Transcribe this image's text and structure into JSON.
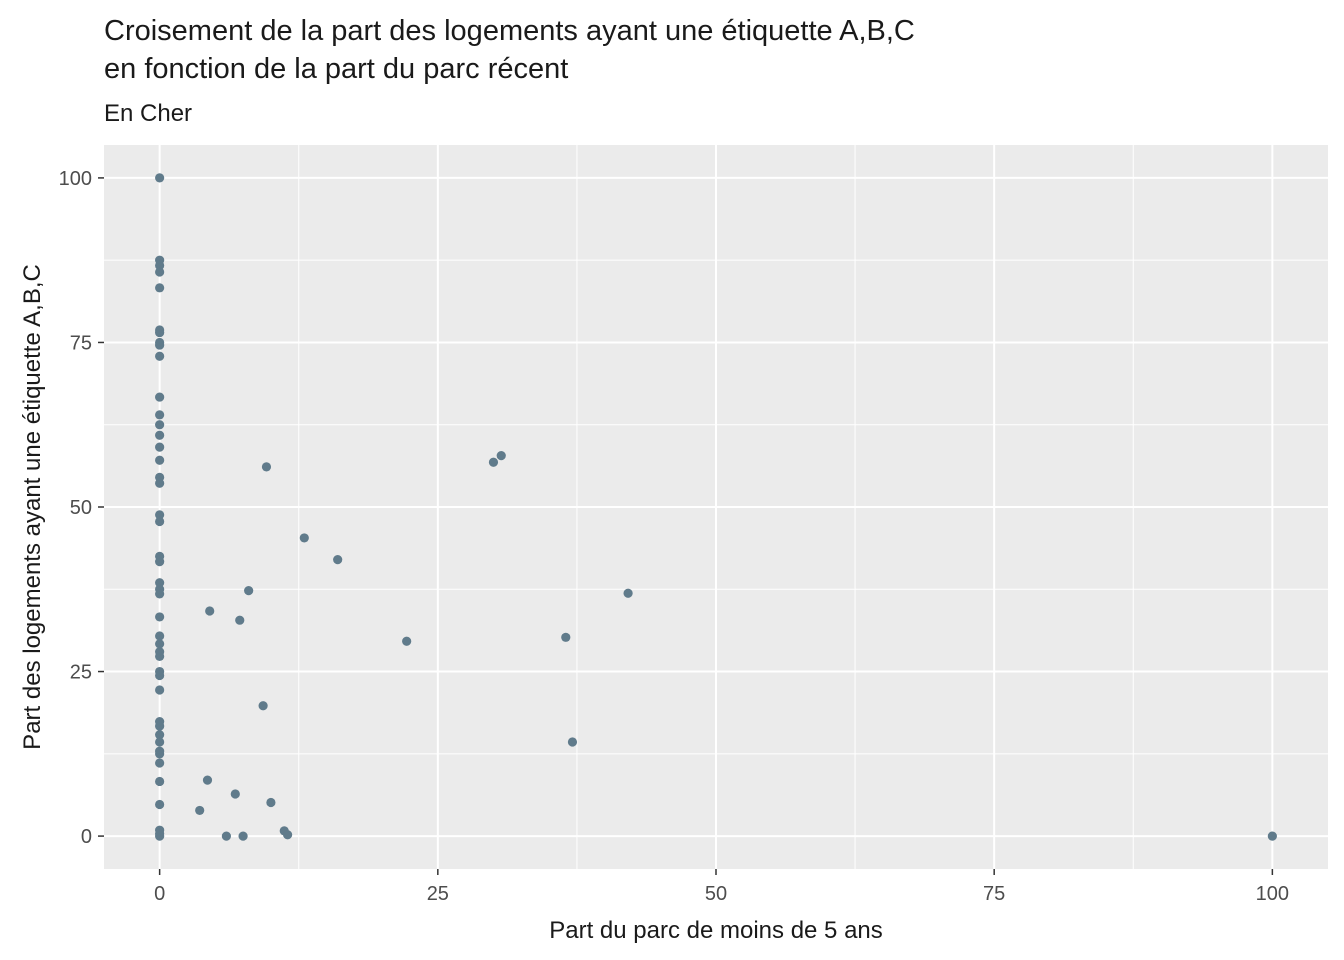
{
  "chart_data": {
    "type": "scatter",
    "title_lines": [
      "Croisement de la part des logements ayant une étiquette A,B,C",
      "en fonction de la part du parc récent"
    ],
    "subtitle": "En Cher",
    "xlabel": "Part du parc de moins de 5 ans",
    "ylabel": "Part des logements ayant une étiquette A,B,C",
    "xlim": [
      -5,
      105
    ],
    "ylim": [
      -5,
      105
    ],
    "xticks": [
      0,
      25,
      50,
      75,
      100
    ],
    "yticks": [
      0,
      25,
      50,
      75,
      100
    ],
    "grid": true,
    "point_color": "#607b8b",
    "panel_color": "#ebebeb",
    "points": [
      [
        0,
        100
      ],
      [
        0,
        87.5
      ],
      [
        0,
        86.7
      ],
      [
        0,
        85.7
      ],
      [
        0,
        83.3
      ],
      [
        0,
        76.9
      ],
      [
        0,
        76.5
      ],
      [
        0,
        75.0
      ],
      [
        0,
        74.6
      ],
      [
        0,
        72.9
      ],
      [
        0,
        66.7
      ],
      [
        0,
        64.0
      ],
      [
        0,
        62.5
      ],
      [
        0,
        60.9
      ],
      [
        0,
        59.1
      ],
      [
        0,
        57.1
      ],
      [
        0,
        54.5
      ],
      [
        0,
        53.6
      ],
      [
        0,
        48.8
      ],
      [
        0,
        47.8
      ],
      [
        0,
        42.5
      ],
      [
        0,
        41.7
      ],
      [
        0,
        38.5
      ],
      [
        0,
        37.5
      ],
      [
        0,
        36.8
      ],
      [
        0,
        33.3
      ],
      [
        0,
        30.4
      ],
      [
        0,
        29.2
      ],
      [
        0,
        28.0
      ],
      [
        0,
        27.3
      ],
      [
        0,
        25.0
      ],
      [
        0,
        24.4
      ],
      [
        0,
        22.2
      ],
      [
        0,
        17.4
      ],
      [
        0,
        16.7
      ],
      [
        0,
        15.4
      ],
      [
        0,
        14.3
      ],
      [
        0,
        12.9
      ],
      [
        0,
        12.5
      ],
      [
        0,
        11.1
      ],
      [
        0,
        8.3
      ],
      [
        0,
        4.8
      ],
      [
        0,
        0.9
      ],
      [
        0,
        0.4
      ],
      [
        0,
        0
      ],
      [
        9.6,
        56.1
      ],
      [
        13.0,
        45.3
      ],
      [
        16.0,
        42.0
      ],
      [
        8.0,
        37.3
      ],
      [
        4.5,
        34.2
      ],
      [
        7.2,
        32.8
      ],
      [
        9.3,
        19.8
      ],
      [
        4.3,
        8.5
      ],
      [
        6.8,
        6.4
      ],
      [
        10.0,
        5.1
      ],
      [
        3.6,
        3.9
      ],
      [
        6.0,
        0
      ],
      [
        7.5,
        0
      ],
      [
        11.2,
        0.8
      ],
      [
        11.5,
        0.2
      ],
      [
        22.2,
        29.6
      ],
      [
        30.0,
        56.8
      ],
      [
        30.7,
        57.8
      ],
      [
        36.5,
        30.2
      ],
      [
        37.1,
        14.3
      ],
      [
        42.1,
        36.9
      ],
      [
        100,
        0
      ]
    ]
  }
}
